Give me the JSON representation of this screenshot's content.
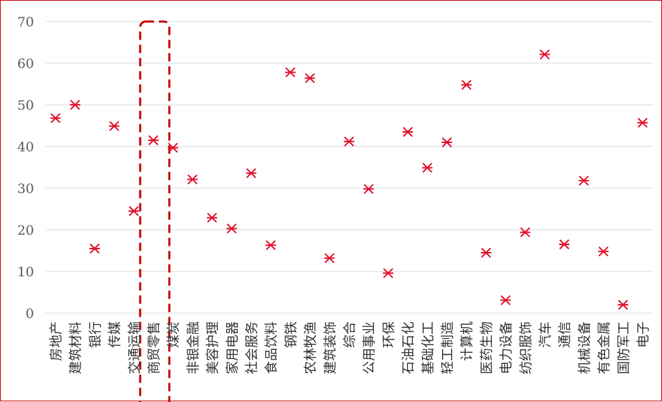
{
  "chart_data": {
    "type": "scatter",
    "title": "",
    "xlabel": "",
    "ylabel": "",
    "ylim": [
      0,
      70
    ],
    "yticks": [
      0,
      10,
      20,
      30,
      40,
      50,
      60,
      70
    ],
    "grid": true,
    "legend": "none",
    "marker": "asterisk",
    "marker_color": "#e0102a",
    "highlight_color": "#c00000",
    "highlight_category": "商贸零售",
    "categories": [
      "房地产",
      "建筑材料",
      "银行",
      "传媒",
      "交通运输",
      "商贸零售",
      "煤炭",
      "非银金融",
      "美容护理",
      "家用电器",
      "社会服务",
      "食品饮料",
      "钢铁",
      "农林牧渔",
      "建筑装饰",
      "综合",
      "公用事业",
      "环保",
      "石油石化",
      "基础化工",
      "轻工制造",
      "计算机",
      "医药生物",
      "电力设备",
      "纺织服饰",
      "汽车",
      "通信",
      "机械设备",
      "有色金属",
      "国防军工",
      "电子"
    ],
    "values": [
      46.8,
      50.0,
      15.5,
      44.9,
      24.5,
      41.5,
      39.7,
      32.1,
      22.9,
      20.3,
      33.6,
      16.3,
      57.8,
      56.4,
      13.2,
      41.2,
      29.8,
      9.6,
      43.5,
      34.9,
      41.0,
      54.8,
      14.5,
      3.1,
      19.4,
      62.1,
      16.5,
      31.8,
      14.8,
      2.0,
      45.7
    ]
  }
}
